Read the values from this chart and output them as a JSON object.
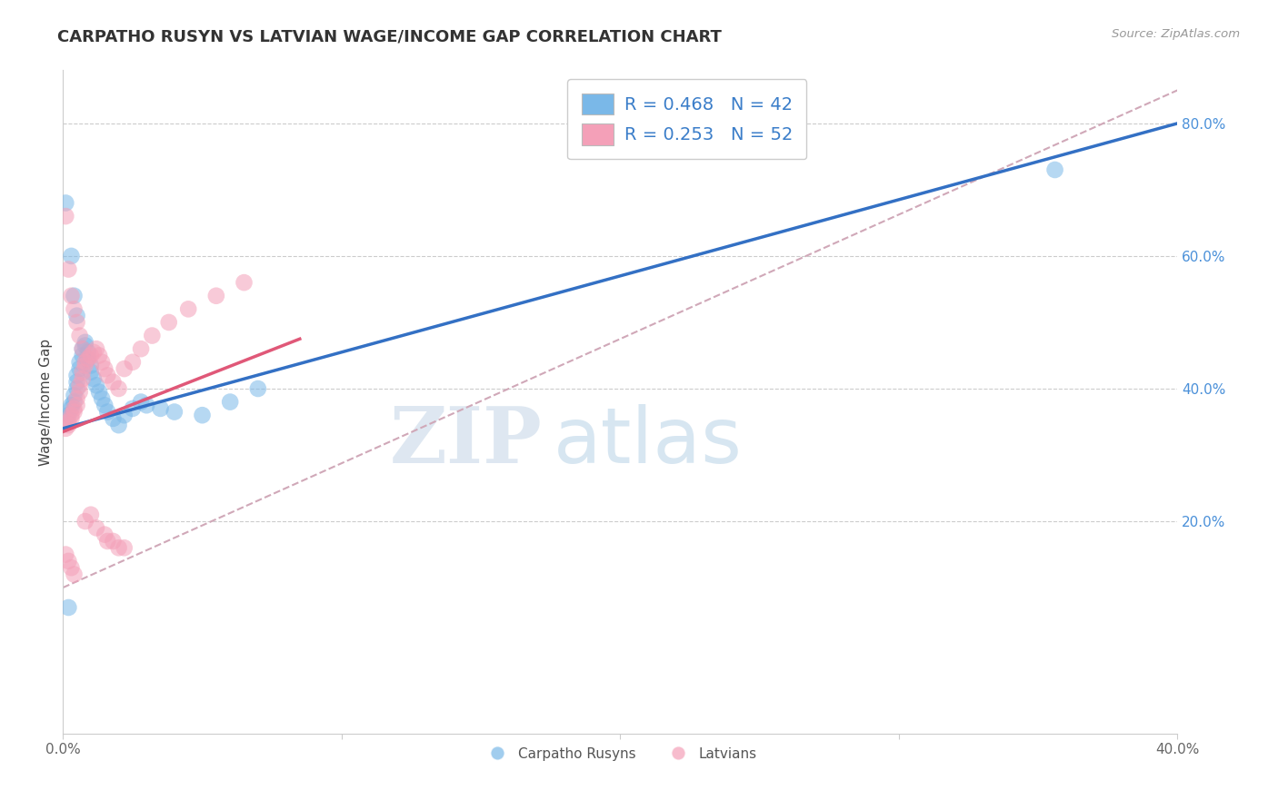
{
  "title": "CARPATHO RUSYN VS LATVIAN WAGE/INCOME GAP CORRELATION CHART",
  "source_text": "Source: ZipAtlas.com",
  "ylabel": "Wage/Income Gap",
  "xlim": [
    0.0,
    0.4
  ],
  "ylim": [
    -0.12,
    0.88
  ],
  "yticks_right": [
    0.2,
    0.4,
    0.6,
    0.8
  ],
  "ytick_labels_right": [
    "20.0%",
    "40.0%",
    "60.0%",
    "80.0%"
  ],
  "xtick_positions": [
    0.0,
    0.1,
    0.2,
    0.3,
    0.4
  ],
  "xtick_labels": [
    "0.0%",
    "",
    "",
    "",
    "40.0%"
  ],
  "blue_R": 0.468,
  "blue_N": 42,
  "pink_R": 0.253,
  "pink_N": 52,
  "blue_color": "#7ab8e8",
  "pink_color": "#f4a0b8",
  "blue_line_color": "#3370c4",
  "pink_line_color": "#e05878",
  "dashed_line_color": "#d0a8b8",
  "watermark_zip": "ZIP",
  "watermark_atlas": "atlas",
  "blue_line_x": [
    0.0,
    0.4
  ],
  "blue_line_y": [
    0.34,
    0.8
  ],
  "pink_line_x": [
    0.0,
    0.085
  ],
  "pink_line_y": [
    0.335,
    0.475
  ],
  "dash_line_x": [
    0.0,
    0.4
  ],
  "dash_line_y": [
    0.1,
    0.85
  ],
  "blue_x": [
    0.001,
    0.002,
    0.003,
    0.003,
    0.004,
    0.004,
    0.005,
    0.005,
    0.005,
    0.006,
    0.006,
    0.007,
    0.007,
    0.008,
    0.008,
    0.009,
    0.009,
    0.01,
    0.01,
    0.011,
    0.012,
    0.013,
    0.014,
    0.015,
    0.016,
    0.018,
    0.02,
    0.022,
    0.025,
    0.028,
    0.03,
    0.035,
    0.04,
    0.05,
    0.06,
    0.07,
    0.001,
    0.002,
    0.003,
    0.004,
    0.356,
    0.005
  ],
  "blue_y": [
    0.355,
    0.36,
    0.37,
    0.375,
    0.38,
    0.39,
    0.4,
    0.41,
    0.42,
    0.43,
    0.44,
    0.45,
    0.46,
    0.465,
    0.47,
    0.455,
    0.445,
    0.435,
    0.425,
    0.415,
    0.405,
    0.395,
    0.385,
    0.375,
    0.365,
    0.355,
    0.345,
    0.36,
    0.37,
    0.38,
    0.375,
    0.37,
    0.365,
    0.36,
    0.38,
    0.4,
    0.68,
    0.07,
    0.6,
    0.54,
    0.73,
    0.51
  ],
  "pink_x": [
    0.001,
    0.002,
    0.002,
    0.003,
    0.003,
    0.004,
    0.004,
    0.005,
    0.005,
    0.006,
    0.006,
    0.007,
    0.007,
    0.008,
    0.008,
    0.009,
    0.01,
    0.011,
    0.012,
    0.013,
    0.014,
    0.015,
    0.016,
    0.018,
    0.02,
    0.022,
    0.025,
    0.028,
    0.032,
    0.038,
    0.045,
    0.055,
    0.065,
    0.001,
    0.002,
    0.003,
    0.004,
    0.005,
    0.006,
    0.007,
    0.008,
    0.01,
    0.012,
    0.015,
    0.018,
    0.022,
    0.001,
    0.002,
    0.003,
    0.004,
    0.016,
    0.02
  ],
  "pink_y": [
    0.34,
    0.345,
    0.35,
    0.355,
    0.36,
    0.365,
    0.37,
    0.375,
    0.385,
    0.395,
    0.405,
    0.415,
    0.425,
    0.435,
    0.44,
    0.445,
    0.45,
    0.455,
    0.46,
    0.45,
    0.44,
    0.43,
    0.42,
    0.41,
    0.4,
    0.43,
    0.44,
    0.46,
    0.48,
    0.5,
    0.52,
    0.54,
    0.56,
    0.66,
    0.58,
    0.54,
    0.52,
    0.5,
    0.48,
    0.46,
    0.2,
    0.21,
    0.19,
    0.18,
    0.17,
    0.16,
    0.15,
    0.14,
    0.13,
    0.12,
    0.17,
    0.16
  ]
}
